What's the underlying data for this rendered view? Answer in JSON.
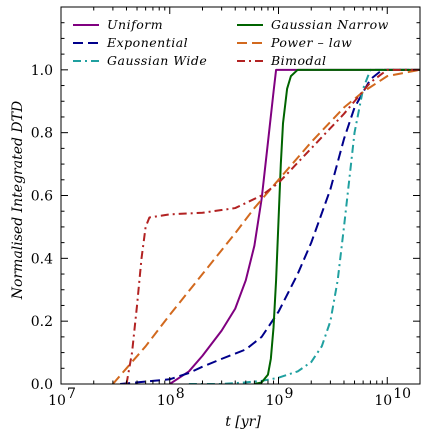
{
  "chart_data": {
    "type": "line",
    "xlabel": "t [yr]",
    "ylabel": "Normalised Integrated DTD",
    "xscale": "log",
    "xlim": [
      10000000,
      20000000000
    ],
    "ylim": [
      0,
      1.2
    ],
    "grid": false,
    "legend_position": "top",
    "x_ticks": [
      {
        "value": 10000000,
        "base": "10",
        "exp": "7"
      },
      {
        "value": 100000000,
        "base": "10",
        "exp": "8"
      },
      {
        "value": 1000000000,
        "base": "10",
        "exp": "9"
      },
      {
        "value": 10000000000,
        "base": "10",
        "exp": "10"
      }
    ],
    "y_ticks": [
      "0.0",
      "0.2",
      "0.4",
      "0.6",
      "0.8",
      "1.0"
    ],
    "y_tick_values": [
      0,
      0.2,
      0.4,
      0.6,
      0.8,
      1.0
    ],
    "series": [
      {
        "name": "Uniform",
        "color": "#800080",
        "dash": "solid",
        "points": [
          [
            100000000,
            0
          ],
          [
            150000000,
            0.04
          ],
          [
            200000000,
            0.09
          ],
          [
            300000000,
            0.17
          ],
          [
            400000000,
            0.24
          ],
          [
            500000000,
            0.33
          ],
          [
            600000000,
            0.44
          ],
          [
            700000000,
            0.59
          ],
          [
            800000000,
            0.77
          ],
          [
            900000000,
            0.93
          ],
          [
            950000000,
            1.0
          ],
          [
            20000000000,
            1.0
          ]
        ]
      },
      {
        "name": "Exponential",
        "color": "#00008b",
        "dash": "long",
        "points": [
          [
            35000000,
            0
          ],
          [
            50000000,
            0.005
          ],
          [
            70000000,
            0.01
          ],
          [
            100000000,
            0.015
          ],
          [
            150000000,
            0.035
          ],
          [
            200000000,
            0.055
          ],
          [
            300000000,
            0.08
          ],
          [
            500000000,
            0.11
          ],
          [
            700000000,
            0.15
          ],
          [
            1000000000,
            0.23
          ],
          [
            1500000000,
            0.35
          ],
          [
            2000000000,
            0.45
          ],
          [
            3000000000,
            0.62
          ],
          [
            4000000000,
            0.78
          ],
          [
            5000000000,
            0.88
          ],
          [
            7000000000,
            0.97
          ],
          [
            9000000000,
            1.0
          ],
          [
            20000000000,
            1.0
          ]
        ]
      },
      {
        "name": "Gaussian Wide",
        "color": "#20a0a0",
        "dash": "dashdot",
        "points": [
          [
            150000000,
            0
          ],
          [
            300000000,
            0
          ],
          [
            500000000,
            0.005
          ],
          [
            700000000,
            0.01
          ],
          [
            1000000000,
            0.02
          ],
          [
            1500000000,
            0.04
          ],
          [
            2000000000,
            0.07
          ],
          [
            2500000000,
            0.12
          ],
          [
            3000000000,
            0.2
          ],
          [
            3500000000,
            0.33
          ],
          [
            4000000000,
            0.5
          ],
          [
            5000000000,
            0.8
          ],
          [
            6000000000,
            0.94
          ],
          [
            7000000000,
            1.0
          ],
          [
            20000000000,
            1.0
          ]
        ]
      },
      {
        "name": "Gaussian Narrow",
        "color": "#006400",
        "dash": "solid",
        "points": [
          [
            600000000,
            0
          ],
          [
            700000000,
            0.005
          ],
          [
            800000000,
            0.03
          ],
          [
            850000000,
            0.08
          ],
          [
            900000000,
            0.18
          ],
          [
            950000000,
            0.33
          ],
          [
            1000000000,
            0.52
          ],
          [
            1050000000,
            0.7
          ],
          [
            1100000000,
            0.83
          ],
          [
            1200000000,
            0.94
          ],
          [
            1300000000,
            0.98
          ],
          [
            1500000000,
            1.0
          ],
          [
            20000000000,
            1.0
          ]
        ]
      },
      {
        "name": "Power – law",
        "color": "#d2691e",
        "dash": "long",
        "points": [
          [
            30000000,
            0
          ],
          [
            40000000,
            0.05
          ],
          [
            60000000,
            0.12
          ],
          [
            100000000,
            0.22
          ],
          [
            200000000,
            0.35
          ],
          [
            400000000,
            0.48
          ],
          [
            600000000,
            0.56
          ],
          [
            1000000000,
            0.65
          ],
          [
            2000000000,
            0.77
          ],
          [
            4000000000,
            0.88
          ],
          [
            6000000000,
            0.93
          ],
          [
            10000000000,
            0.98
          ],
          [
            20000000000,
            1.0
          ]
        ]
      },
      {
        "name": "Bimodal",
        "color": "#b22222",
        "dash": "dashdot",
        "points": [
          [
            40000000,
            0
          ],
          [
            45000000,
            0.1
          ],
          [
            50000000,
            0.25
          ],
          [
            55000000,
            0.4
          ],
          [
            60000000,
            0.5
          ],
          [
            65000000,
            0.53
          ],
          [
            100000000,
            0.54
          ],
          [
            200000000,
            0.545
          ],
          [
            400000000,
            0.56
          ],
          [
            700000000,
            0.6
          ],
          [
            1000000000,
            0.64
          ],
          [
            2000000000,
            0.75
          ],
          [
            4000000000,
            0.86
          ],
          [
            7000000000,
            0.96
          ],
          [
            10000000000,
            1.0
          ],
          [
            20000000000,
            1.0
          ]
        ]
      }
    ]
  }
}
